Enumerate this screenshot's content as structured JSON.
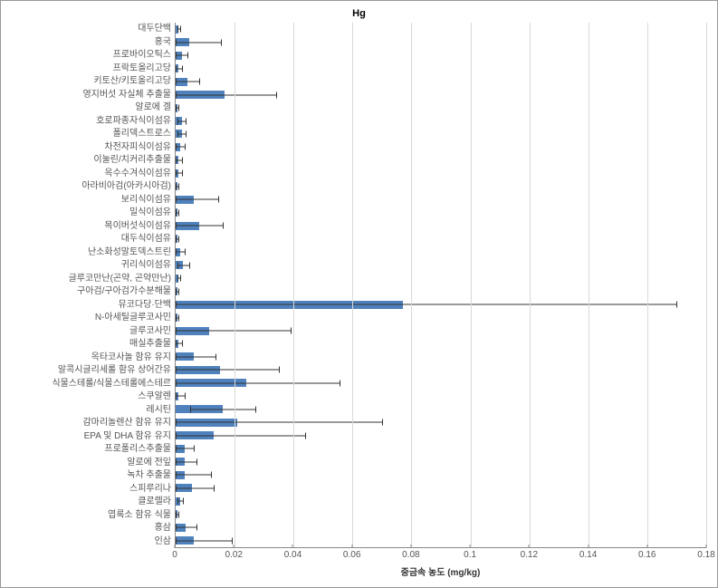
{
  "chart": {
    "type": "bar-horizontal",
    "title": "Hg",
    "title_fontsize": 11,
    "xlabel": "중금속 농도 (mg/kg)",
    "label_fontsize": 10,
    "xlim": [
      0,
      0.18
    ],
    "xtick_step": 0.02,
    "xticks": [
      0,
      0.02,
      0.04,
      0.06,
      0.08,
      0.1,
      0.12,
      0.14,
      0.16,
      0.18
    ],
    "bar_color": "#4f81bd",
    "background_color": "#ffffff",
    "grid_color": "#d9d9d9",
    "axis_color": "#888888",
    "tick_label_color": "#555555",
    "category_fontsize": 10,
    "bar_width": 0.62,
    "error_bar_color": "#333333",
    "categories": [
      "대두단백",
      "홍국",
      "프로바이오틱스",
      "프락토올리고당",
      "키토산/키토올리고당",
      "영지버섯 자실체 추출물",
      "알로에 겔",
      "호로파종자식이섬유",
      "폴리덱스트로스",
      "차전자피식이섬유",
      "이눌린/치커리추출물",
      "옥수수겨식이섬유",
      "아라비아검(아카시아검)",
      "보리식이섬유",
      "밀식이섬유",
      "목이버섯식이섬유",
      "대두식이섬유",
      "난소화성말토덱스트린",
      "귀리식이섬유",
      "글루코만난(곤약, 곤약만난)",
      "구아검/구아검가수분해물",
      "뮤코다당·단백",
      "N-아세틸글루코사민",
      "글루코사민",
      "매실추출물",
      "옥타코사놀 함유 유지",
      "알콕시글리세롤 함유 상어간유",
      "식물스테롤/식물스테롤에스테르",
      "스쿠알렌",
      "레시틴",
      "감마리놀렌산 함유 유지",
      "EPA 및 DHA 함유 유지",
      "프로폴리스추출물",
      "알로에 전잎",
      "녹차 추출물",
      "스피루리나",
      "클로렐라",
      "엽록소 함유 식물",
      "홍삼",
      "인삼"
    ],
    "values": [
      0.001,
      0.0045,
      0.002,
      0.001,
      0.004,
      0.0165,
      0.0005,
      0.002,
      0.002,
      0.0015,
      0.001,
      0.001,
      0.0005,
      0.006,
      0.0005,
      0.008,
      0.0005,
      0.0015,
      0.0025,
      0.001,
      0.0005,
      0.077,
      0.0005,
      0.0115,
      0.001,
      0.006,
      0.015,
      0.024,
      0.001,
      0.016,
      0.021,
      0.013,
      0.003,
      0.003,
      0.003,
      0.0055,
      0.0015,
      0.0005,
      0.0035,
      0.006
    ],
    "errors": [
      0.0005,
      0.011,
      0.002,
      0.001,
      0.004,
      0.0175,
      0.0005,
      0.0015,
      0.0015,
      0.0015,
      0.001,
      0.001,
      0.0005,
      0.0085,
      0.0005,
      0.008,
      0.0005,
      0.0015,
      0.002,
      0.0005,
      0.0005,
      0.093,
      0.0005,
      0.0275,
      0.001,
      0.0075,
      0.02,
      0.0315,
      0.002,
      0.011,
      0.049,
      0.031,
      0.003,
      0.004,
      0.009,
      0.0075,
      0.001,
      0.0005,
      0.0035,
      0.013
    ]
  }
}
